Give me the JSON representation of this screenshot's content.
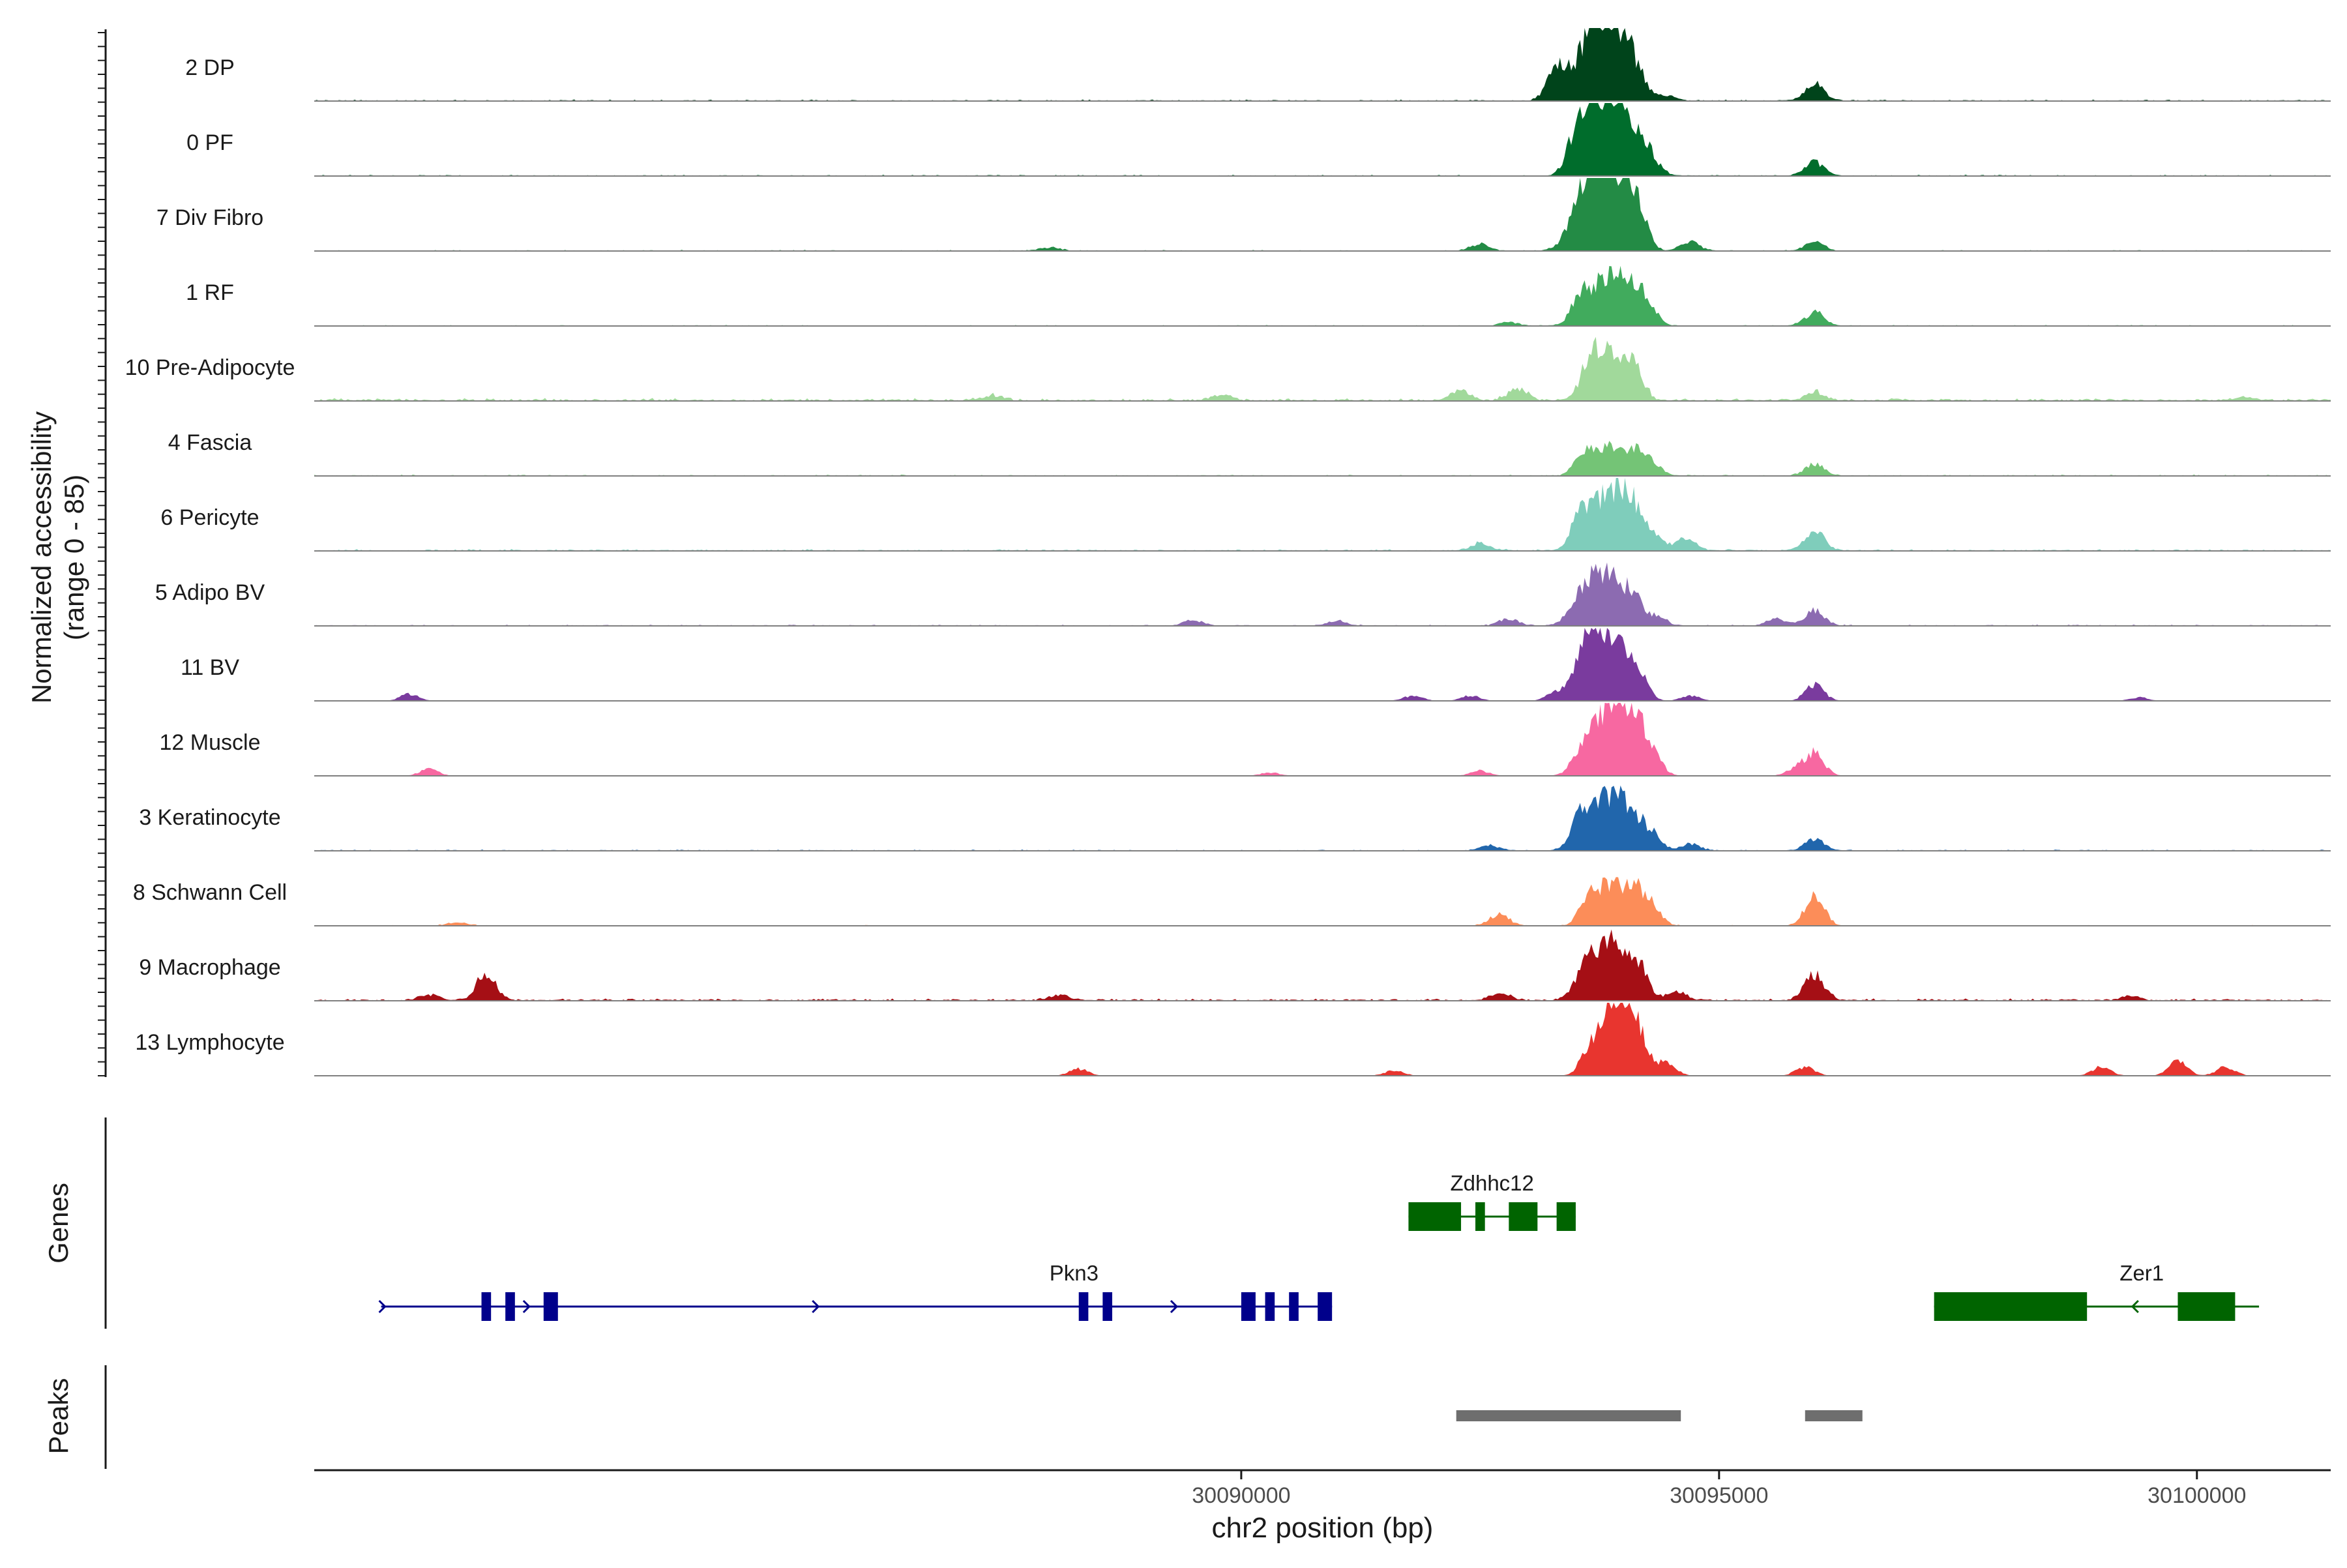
{
  "chart_data": {
    "type": "area",
    "xlabel": "chr2 position (bp)",
    "xlim": [
      30080300,
      30101400
    ],
    "x_ticks": [
      30090000,
      30095000,
      30100000
    ],
    "x_tick_labels": [
      "30090000",
      "30095000",
      "30100000"
    ],
    "ylabel_line1": "Normalized accessibility",
    "ylabel_line2": "(range 0 - 85)",
    "ylim": [
      0,
      85
    ],
    "genes_label": "Genes",
    "peaks_label": "Peaks",
    "tracks": [
      {
        "name": "2 DP",
        "color": "#00441b",
        "bg": 1.2,
        "peaks": [
          [
            30093300,
            38
          ],
          [
            30093620,
            55
          ],
          [
            30093780,
            50
          ],
          [
            30093950,
            66
          ],
          [
            30094150,
            22
          ],
          [
            30094450,
            6
          ],
          [
            30096000,
            20
          ]
        ]
      },
      {
        "name": "0 PF",
        "color": "#006d2c",
        "bg": 1.0,
        "peaks": [
          [
            30093500,
            38
          ],
          [
            30093700,
            66
          ],
          [
            30093900,
            62
          ],
          [
            30094100,
            45
          ],
          [
            30094300,
            12
          ],
          [
            30096000,
            16
          ]
        ]
      },
      {
        "name": "7 Div Fibro",
        "color": "#238b45",
        "bg": 0.8,
        "peaks": [
          [
            30093550,
            45
          ],
          [
            30093750,
            82
          ],
          [
            30093950,
            66
          ],
          [
            30094150,
            40
          ],
          [
            30094700,
            10
          ],
          [
            30096000,
            10
          ],
          [
            30092500,
            8
          ],
          [
            30088000,
            4
          ]
        ]
      },
      {
        "name": "1 RF",
        "color": "#41ab5d",
        "bg": 0.8,
        "peaks": [
          [
            30093550,
            32
          ],
          [
            30093800,
            50
          ],
          [
            30094050,
            44
          ],
          [
            30094250,
            18
          ],
          [
            30096000,
            16
          ],
          [
            30092800,
            4
          ]
        ]
      },
      {
        "name": "10 Pre-Adipocyte",
        "color": "#a1d99b",
        "bg": 2.2,
        "peaks": [
          [
            30093650,
            40
          ],
          [
            30093850,
            48
          ],
          [
            30094100,
            40
          ],
          [
            30092300,
            12
          ],
          [
            30092900,
            14
          ],
          [
            30096000,
            10
          ],
          [
            30089800,
            6
          ],
          [
            30087400,
            5
          ],
          [
            30100500,
            4
          ]
        ]
      },
      {
        "name": "4 Fascia",
        "color": "#74c476",
        "bg": 1.0,
        "peaks": [
          [
            30093600,
            32
          ],
          [
            30093850,
            35
          ],
          [
            30094100,
            30
          ],
          [
            30094300,
            14
          ],
          [
            30096000,
            14
          ]
        ]
      },
      {
        "name": "6 Pericyte",
        "color": "#7fcdbb",
        "bg": 1.4,
        "peaks": [
          [
            30093550,
            40
          ],
          [
            30093800,
            56
          ],
          [
            30094050,
            60
          ],
          [
            30094300,
            18
          ],
          [
            30094650,
            14
          ],
          [
            30096000,
            24
          ],
          [
            30092500,
            8
          ]
        ]
      },
      {
        "name": "5 Adipo BV",
        "color": "#8c6bb1",
        "bg": 1.0,
        "peaks": [
          [
            30093600,
            44
          ],
          [
            30093850,
            50
          ],
          [
            30094100,
            34
          ],
          [
            30094350,
            10
          ],
          [
            30096000,
            18
          ],
          [
            30095600,
            8
          ],
          [
            30092800,
            8
          ],
          [
            30089500,
            6
          ],
          [
            30091000,
            6
          ]
        ]
      },
      {
        "name": "11 BV",
        "color": "#7a3b9e",
        "bg": 0.0,
        "peaks": [
          [
            30093650,
            72
          ],
          [
            30093900,
            60
          ],
          [
            30094150,
            36
          ],
          [
            30093300,
            10
          ],
          [
            30096000,
            18
          ],
          [
            30094700,
            6
          ],
          [
            30081300,
            8
          ],
          [
            30091800,
            6
          ],
          [
            30092400,
            6
          ],
          [
            30099400,
            4
          ]
        ]
      },
      {
        "name": "12 Muscle",
        "color": "#f768a1",
        "bg": 0.0,
        "peaks": [
          [
            30093650,
            48
          ],
          [
            30093900,
            62
          ],
          [
            30094100,
            58
          ],
          [
            30094300,
            20
          ],
          [
            30096000,
            26
          ],
          [
            30081500,
            8
          ],
          [
            30092500,
            6
          ],
          [
            30095800,
            8
          ],
          [
            30090300,
            4
          ]
        ]
      },
      {
        "name": "3 Keratinocyte",
        "color": "#2166ac",
        "bg": 1.0,
        "peaks": [
          [
            30093550,
            38
          ],
          [
            30093800,
            54
          ],
          [
            30094050,
            46
          ],
          [
            30094300,
            16
          ],
          [
            30094700,
            8
          ],
          [
            30096000,
            14
          ],
          [
            30092600,
            6
          ]
        ]
      },
      {
        "name": "8 Schwann Cell",
        "color": "#fc8d59",
        "bg": 0.6,
        "peaks": [
          [
            30093650,
            36
          ],
          [
            30093850,
            38
          ],
          [
            30094100,
            42
          ],
          [
            30094300,
            16
          ],
          [
            30096000,
            34
          ],
          [
            30092700,
            14
          ],
          [
            30081800,
            4
          ]
        ]
      },
      {
        "name": "9 Macrophage",
        "color": "#a50f15",
        "bg": 1.8,
        "peaks": [
          [
            30093650,
            42
          ],
          [
            30093900,
            58
          ],
          [
            30094150,
            40
          ],
          [
            30094550,
            10
          ],
          [
            30096000,
            30
          ],
          [
            30082100,
            32
          ],
          [
            30092700,
            8
          ],
          [
            30088100,
            6
          ],
          [
            30081500,
            6
          ],
          [
            30099300,
            5
          ]
        ]
      },
      {
        "name": "13 Lymphocyte",
        "color": "#e8352f",
        "bg": 0.0,
        "peaks": [
          [
            30093650,
            30
          ],
          [
            30093850,
            40
          ],
          [
            30094000,
            85
          ],
          [
            30094200,
            20
          ],
          [
            30094450,
            14
          ],
          [
            30095900,
            10
          ],
          [
            30099800,
            16
          ],
          [
            30088300,
            8
          ],
          [
            30091600,
            6
          ],
          [
            30099000,
            10
          ],
          [
            30100300,
            10
          ]
        ]
      }
    ],
    "genes": [
      {
        "name": "Pkn3",
        "strand": "+",
        "start": 30081000,
        "end": 30090950,
        "color": "#00008b",
        "row": 2,
        "exons": [
          [
            30082050,
            30082150
          ],
          [
            30082300,
            30082400
          ],
          [
            30082700,
            30082850
          ],
          [
            30088300,
            30088400
          ],
          [
            30088550,
            30088650
          ],
          [
            30090000,
            30090150
          ],
          [
            30090250,
            30090350
          ],
          [
            30090500,
            30090600
          ],
          [
            30090800,
            30090950
          ]
        ]
      },
      {
        "name": "Zdhhc12",
        "strand": "-",
        "start": 30091750,
        "end": 30093500,
        "color": "#006400",
        "row": 1,
        "exons": [
          [
            30091750,
            30092300
          ],
          [
            30092450,
            30092550
          ],
          [
            30092800,
            30093100
          ],
          [
            30093300,
            30093500
          ]
        ]
      },
      {
        "name": "Zer1",
        "strand": "-",
        "start": 30097250,
        "end": 30100650,
        "color": "#006400",
        "row": 2,
        "exons": [
          [
            30097250,
            30098850
          ],
          [
            30099800,
            30100400
          ]
        ]
      }
    ],
    "peaks": [
      [
        30092250,
        30094600
      ],
      [
        30095900,
        30096500
      ]
    ]
  }
}
